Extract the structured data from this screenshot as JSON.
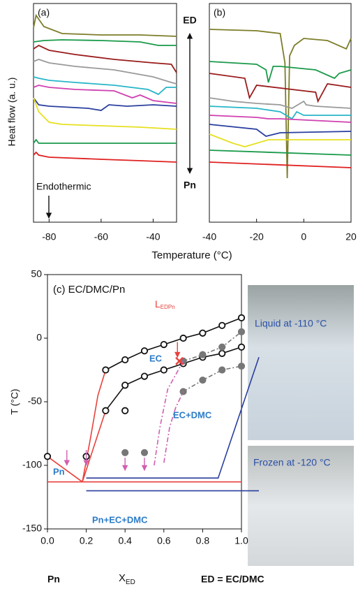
{
  "chart_data": [
    {
      "type": "line",
      "panel": "(a)",
      "ylabel": "Heat flow (a. u.)",
      "xlabel": "Temperature (°C)",
      "xlim": [
        -86,
        -31
      ],
      "ylim": [
        0,
        313
      ],
      "xticks": [
        -80,
        -60,
        -40
      ],
      "annotations": [
        "ED",
        "Pn",
        "Endothermic"
      ],
      "series": [
        {
          "color": "#7d7d2a",
          "x": [
            -86,
            -85,
            -82,
            -75,
            -60,
            -45,
            -31
          ],
          "values": [
            278,
            296,
            280,
            270,
            268,
            268,
            266
          ]
        },
        {
          "color": "#1a9a4a",
          "x": [
            -86,
            -82,
            -75,
            -60,
            -45,
            -38,
            -31
          ],
          "values": [
            258,
            260,
            261,
            260,
            258,
            253,
            253
          ]
        },
        {
          "color": "#9a1c1c",
          "x": [
            -86,
            -84,
            -80,
            -70,
            -55,
            -40,
            -33,
            -31
          ],
          "values": [
            248,
            253,
            246,
            240,
            233,
            228,
            226,
            214
          ]
        },
        {
          "color": "#9a9a9a",
          "x": [
            -86,
            -84,
            -80,
            -70,
            -55,
            -40,
            -33,
            -31
          ],
          "values": [
            230,
            233,
            228,
            223,
            218,
            208,
            200,
            198
          ]
        },
        {
          "color": "#27b6c8",
          "x": [
            -86,
            -84,
            -80,
            -70,
            -55,
            -42,
            -38,
            -35,
            -31
          ],
          "values": [
            208,
            206,
            203,
            200,
            196,
            190,
            183,
            193,
            193
          ]
        },
        {
          "color": "#d040b0",
          "x": [
            -86,
            -84,
            -80,
            -70,
            -55,
            -48,
            -45,
            -40,
            -31
          ],
          "values": [
            193,
            196,
            193,
            190,
            188,
            178,
            182,
            174,
            170
          ]
        },
        {
          "color": "#2a3f9e",
          "x": [
            -86,
            -84,
            -80,
            -65,
            -60,
            -57,
            -50,
            -40,
            -31
          ],
          "values": [
            178,
            168,
            166,
            163,
            160,
            168,
            166,
            168,
            166
          ]
        },
        {
          "color": "#e6e020",
          "x": [
            -86,
            -84,
            -80,
            -75,
            -60,
            -45,
            -31
          ],
          "values": [
            178,
            158,
            143,
            140,
            138,
            136,
            133
          ]
        },
        {
          "color": "#1a9a4a",
          "x": [
            -86,
            -85,
            -84,
            -80,
            -60,
            -45,
            -31
          ],
          "values": [
            113,
            118,
            113,
            113,
            113,
            113,
            113
          ]
        },
        {
          "color": "#e02020",
          "x": [
            -86,
            -85,
            -84,
            -80,
            -60,
            -45,
            -31
          ],
          "values": [
            96,
            100,
            96,
            93,
            90,
            88,
            86
          ]
        }
      ]
    },
    {
      "type": "line",
      "panel": "(b)",
      "xlim": [
        -40,
        20
      ],
      "ylim": [
        0,
        313
      ],
      "xticks": [
        -40,
        -20,
        0,
        20
      ],
      "series": [
        {
          "color": "#7d7d2a",
          "x": [
            -40,
            -20,
            -10,
            -8,
            -7,
            -6,
            -4,
            0,
            10,
            18,
            20
          ],
          "values": [
            276,
            274,
            270,
            228,
            63,
            238,
            253,
            263,
            260,
            248,
            263
          ]
        },
        {
          "color": "#1a9a4a",
          "x": [
            -40,
            -20,
            -16,
            -15,
            -13,
            -10,
            5,
            13,
            15,
            20
          ],
          "values": [
            230,
            226,
            218,
            200,
            223,
            223,
            218,
            206,
            213,
            218
          ]
        },
        {
          "color": "#9a1c1c",
          "x": [
            -40,
            -25,
            -23,
            -20,
            0,
            5,
            6,
            10,
            20
          ],
          "values": [
            213,
            206,
            178,
            196,
            188,
            186,
            173,
            198,
            193
          ]
        },
        {
          "color": "#9a9a9a",
          "x": [
            -40,
            -30,
            -20,
            -10,
            -5,
            0,
            1,
            5,
            20
          ],
          "values": [
            178,
            173,
            170,
            168,
            163,
            173,
            168,
            166,
            163
          ]
        },
        {
          "color": "#27b6c8",
          "x": [
            -40,
            -20,
            -10,
            -5,
            -3,
            0,
            20
          ],
          "values": [
            166,
            163,
            158,
            148,
            158,
            153,
            153
          ]
        },
        {
          "color": "#d040b0",
          "x": [
            -40,
            -20,
            -15,
            -10,
            20
          ],
          "values": [
            153,
            150,
            148,
            148,
            143
          ]
        },
        {
          "color": "#2a3f9e",
          "x": [
            -40,
            -20,
            -16,
            -10,
            20
          ],
          "values": [
            140,
            133,
            123,
            128,
            130
          ]
        },
        {
          "color": "#e6e020",
          "x": [
            -40,
            -30,
            -25,
            -20,
            -15,
            -10,
            20
          ],
          "values": [
            126,
            113,
            108,
            113,
            118,
            118,
            118
          ]
        },
        {
          "color": "#1a9a4a",
          "x": [
            -40,
            20
          ],
          "values": [
            103,
            96
          ]
        },
        {
          "color": "#e02020",
          "x": [
            -40,
            20
          ],
          "values": [
            86,
            78
          ]
        }
      ]
    },
    {
      "type": "phase",
      "title": "(c) EC/DMC/Pn",
      "ylabel": "T (°C)",
      "xlabel": "X",
      "xlabel_sub": "ED",
      "xlim": [
        0,
        1
      ],
      "ylim": [
        -150,
        50
      ],
      "xticks": [
        {
          "value": 0,
          "label": "0.0"
        },
        {
          "value": 0.2,
          "label": "0.2"
        },
        {
          "value": 0.4,
          "label": "0.4"
        },
        {
          "value": 0.6,
          "label": "0.6"
        },
        {
          "value": 0.8,
          "label": "0.8"
        },
        {
          "value": 1,
          "label": "1.0"
        }
      ],
      "yticks": [
        -150,
        -100,
        -50,
        0,
        50
      ],
      "bottom_labels": [
        "Pn",
        "ED = EC/DMC"
      ],
      "lead": "L",
      "lead_sub": "EDPn",
      "annotations": [
        {
          "text": "EC",
          "color": "#2b7bc8"
        },
        {
          "text": "EC+DMC",
          "color": "#2b7bc8"
        },
        {
          "text": "Pn",
          "color": "#2b7bc8"
        },
        {
          "text": "Pn+EC+DMC",
          "color": "#2b7bc8"
        }
      ],
      "insets": [
        "Liquid at -110 °C",
        "Frozen at -120 °C"
      ],
      "series": [
        {
          "color": "#e8413c",
          "style": "line",
          "x": [
            0.18,
            0.22,
            0.26,
            0.3
          ],
          "values": [
            -113,
            -80,
            -45,
            -25
          ]
        },
        {
          "color": "#e8413c",
          "style": "line",
          "x": [
            0.18,
            0.3
          ],
          "values": [
            -113,
            -57
          ]
        },
        {
          "color": "#e8413c",
          "style": "line",
          "x": [
            0,
            0.18
          ],
          "values": [
            -93,
            -113
          ]
        },
        {
          "color": "#e8413c",
          "style": "line",
          "x": [
            0,
            1
          ],
          "values": [
            -113,
            -113
          ]
        },
        {
          "color": "#111111",
          "style": "line-circle",
          "x": [
            0.3,
            0.4,
            0.5,
            0.6,
            0.7,
            0.8,
            0.9,
            1.0
          ],
          "values": [
            -25,
            -17,
            -10,
            -5,
            0,
            4,
            10,
            16
          ]
        },
        {
          "color": "#111111",
          "style": "line-circle",
          "x": [
            0.3,
            0.4,
            0.5,
            0.6,
            0.7,
            0.8,
            0.9,
            1.0
          ],
          "values": [
            -57,
            -37,
            -30,
            -25,
            -20,
            -15,
            -12,
            -7
          ]
        },
        {
          "color": "#111111",
          "style": "circle",
          "x": [
            0,
            0.2,
            0.4
          ],
          "values": [
            -93,
            -93,
            -57
          ]
        },
        {
          "color": "#777777",
          "style": "dash-dot",
          "x": [
            0.7,
            0.8,
            0.9,
            1.0
          ],
          "values": [
            -18,
            -13,
            -7,
            5
          ]
        },
        {
          "color": "#777777",
          "style": "dash-dot",
          "x": [
            0.7,
            0.8,
            0.9,
            1.0
          ],
          "values": [
            -42,
            -33,
            -25,
            -22
          ]
        },
        {
          "color": "#777777",
          "style": "dot",
          "x": [
            0.4,
            0.5
          ],
          "values": [
            -90,
            -90
          ]
        },
        {
          "color": "#d05fb0",
          "style": "dash-line",
          "x": [
            0.55,
            0.58,
            0.62,
            0.7
          ],
          "values": [
            -100,
            -70,
            -40,
            -18
          ]
        },
        {
          "color": "#d05fb0",
          "style": "dash-line",
          "x": [
            0.6,
            0.63,
            0.66,
            0.7
          ],
          "values": [
            -98,
            -70,
            -55,
            -42
          ]
        },
        {
          "color": "#d05fb0",
          "style": "arrow",
          "x": [
            0.1,
            0.2,
            0.4,
            0.5
          ],
          "values": [
            -88,
            -88,
            -94,
            -94
          ],
          "to": [
            -100,
            -100,
            -104,
            -104
          ]
        },
        {
          "color": "#e8413c",
          "style": "arrow",
          "x": [
            0.67
          ],
          "values": [
            -3
          ],
          "to": [
            -15
          ]
        },
        {
          "color": "#e8413c",
          "style": "cross",
          "x": [
            0.68
          ],
          "values": [
            -18
          ]
        },
        {
          "color": "#2a3f9e",
          "style": "line",
          "x": [
            0.2,
            0.88,
            1.09
          ],
          "values": [
            -110,
            -110,
            -15
          ]
        },
        {
          "color": "#2a3f9e",
          "style": "line",
          "x": [
            0.2,
            1.09
          ],
          "values": [
            -120,
            -120
          ]
        }
      ]
    }
  ]
}
